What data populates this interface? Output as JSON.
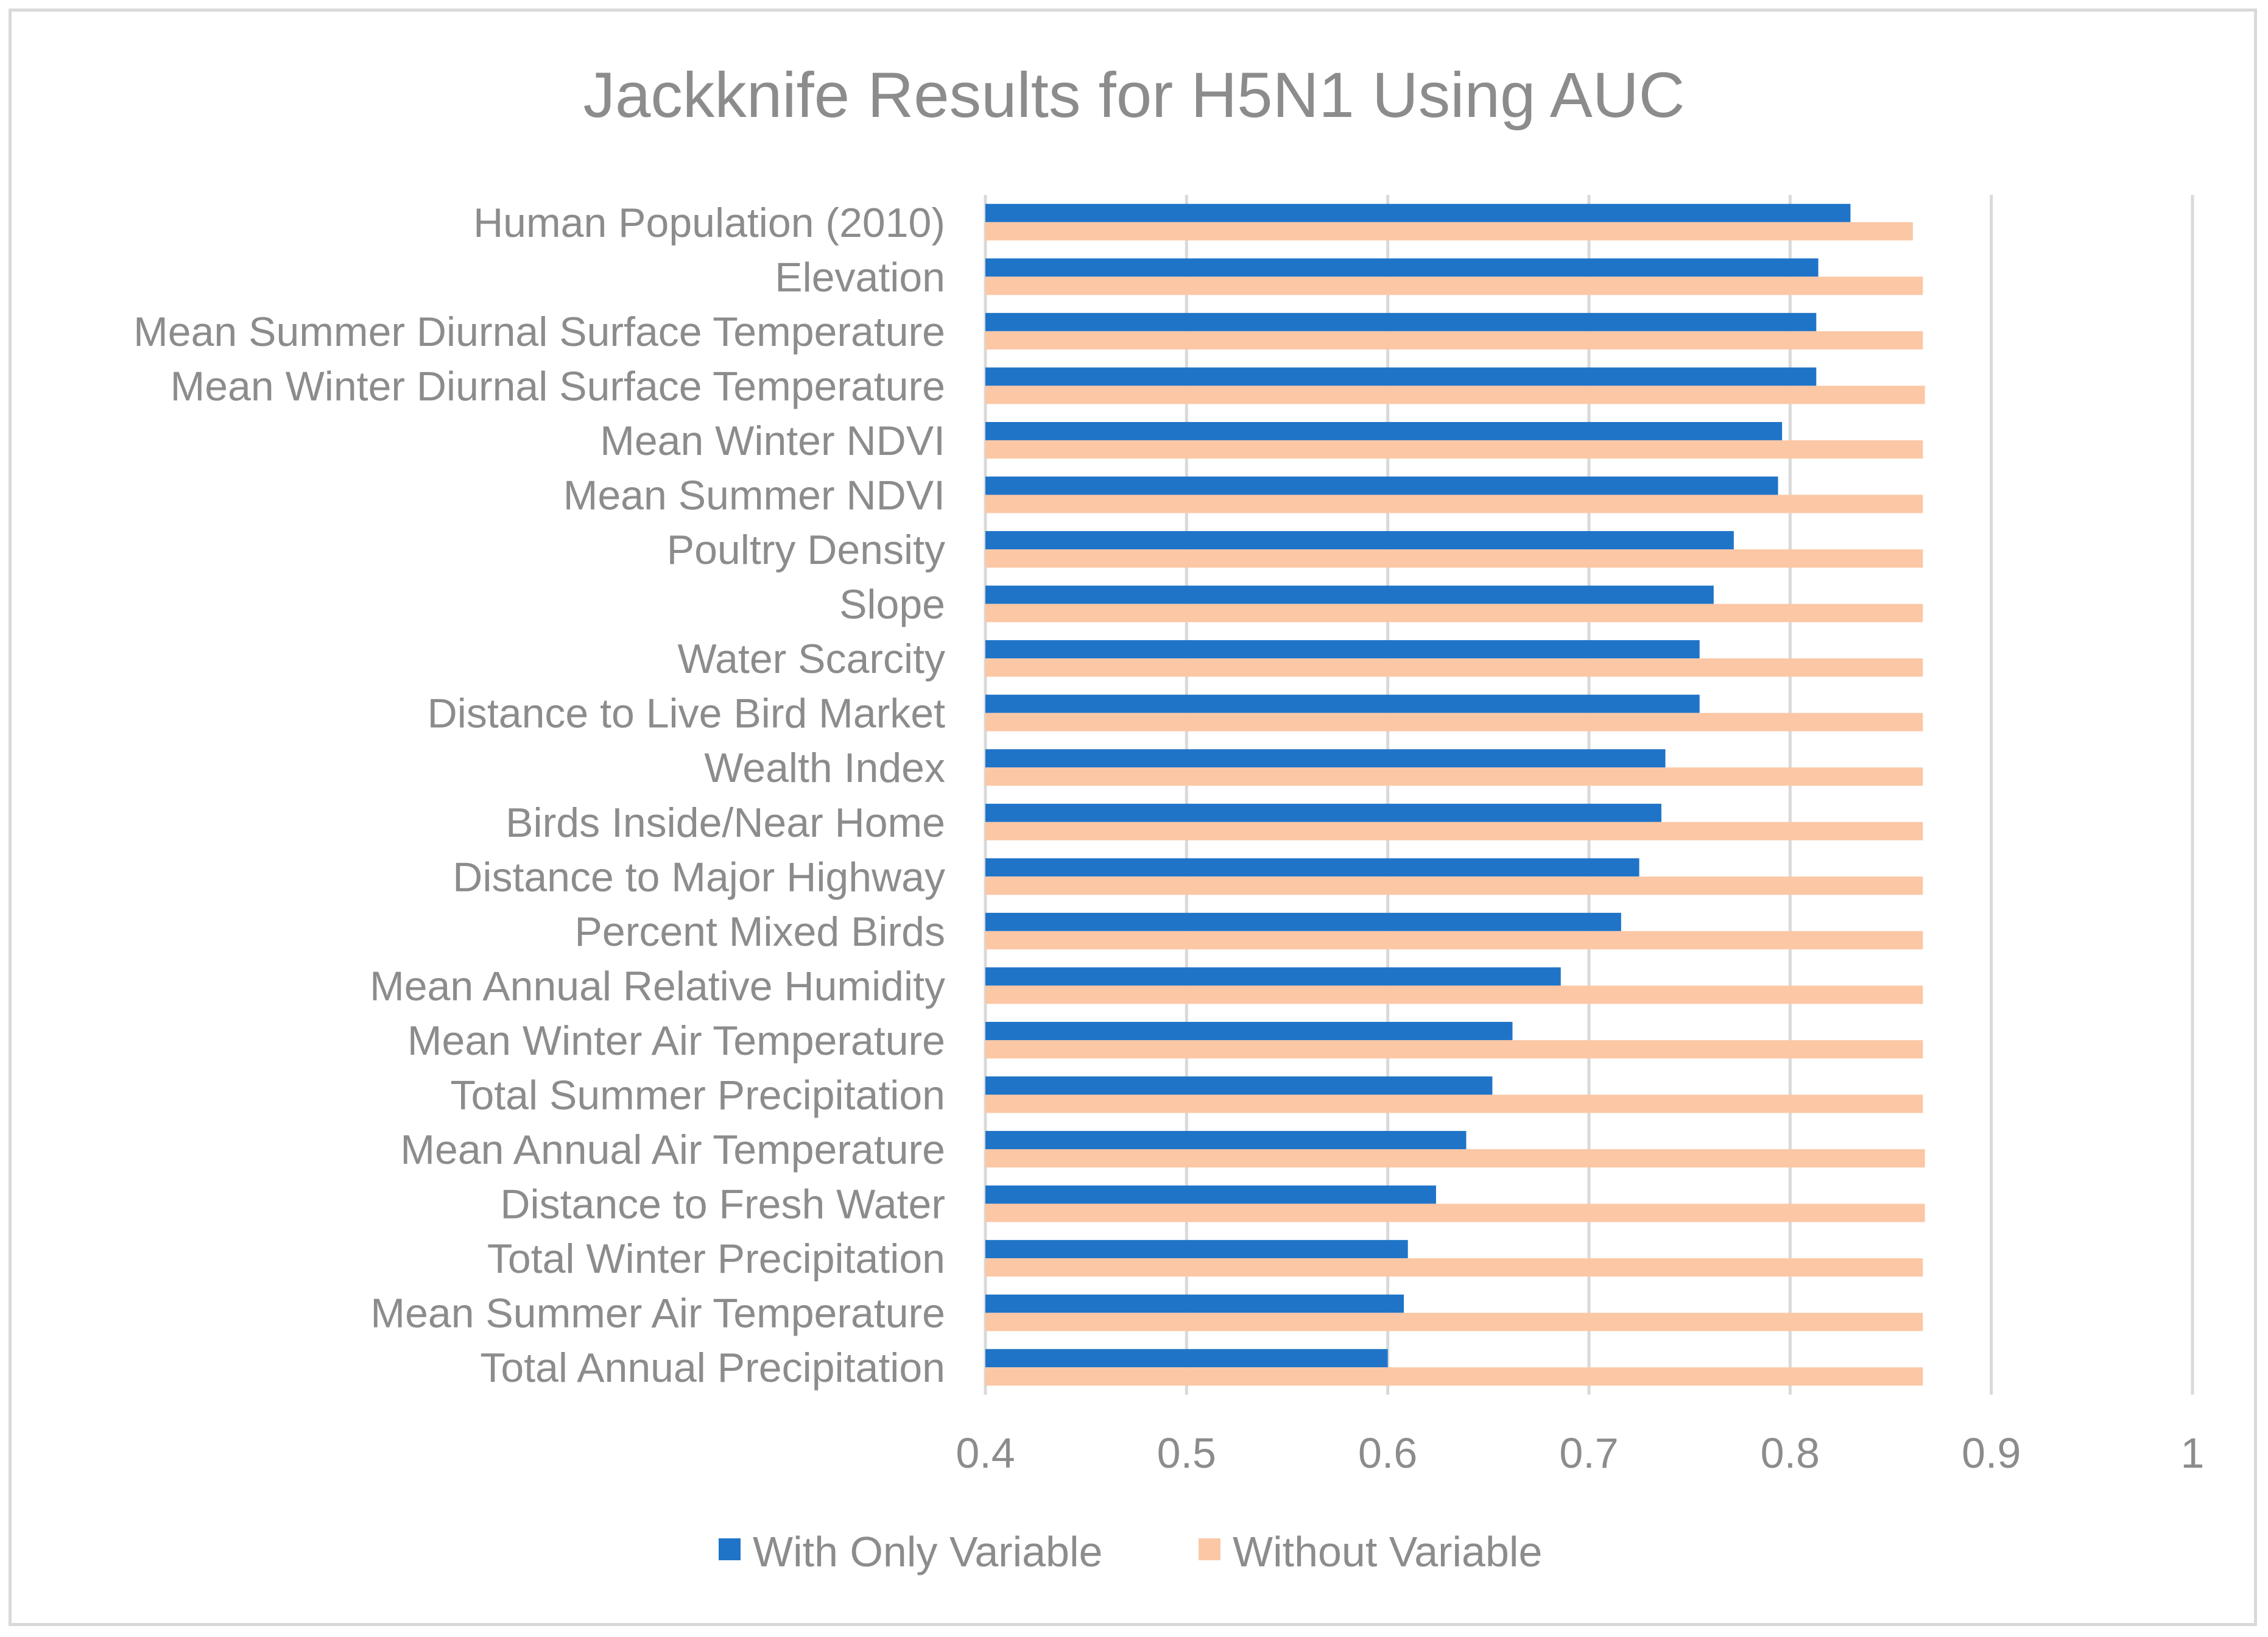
{
  "chart_data": {
    "type": "bar",
    "orientation": "horizontal",
    "title": "Jackknife Results for H5N1 Using AUC",
    "xlabel": "",
    "ylabel": "",
    "xlim": [
      0.4,
      1
    ],
    "x_ticks": [
      "0.4",
      "0.5",
      "0.6",
      "0.7",
      "0.8",
      "0.9",
      "1"
    ],
    "grid": true,
    "legend_position": "bottom",
    "categories": [
      "Human Population (2010)",
      "Elevation",
      "Mean Summer Diurnal Surface Temperature",
      "Mean Winter Diurnal Surface Temperature",
      "Mean Winter NDVI",
      "Mean Summer NDVI",
      "Poultry Density",
      "Slope",
      "Water Scarcity",
      "Distance to Live Bird Market",
      "Wealth Index",
      "Birds Inside/Near Home",
      "Distance to Major Highway",
      "Percent Mixed Birds",
      "Mean Annual Relative Humidity",
      "Mean Winter Air Temperature",
      "Total Summer Precipitation",
      "Mean Annual Air Temperature",
      "Distance to Fresh Water",
      "Total Winter Precipitation",
      "Mean Summer Air Temperature",
      "Total Annual Precipitation"
    ],
    "series": [
      {
        "name": "With Only Variable",
        "color": "#1f74c8",
        "values": [
          0.83,
          0.814,
          0.813,
          0.813,
          0.796,
          0.794,
          0.772,
          0.762,
          0.755,
          0.755,
          0.738,
          0.736,
          0.725,
          0.716,
          0.686,
          0.662,
          0.652,
          0.639,
          0.624,
          0.61,
          0.608,
          0.6
        ]
      },
      {
        "name": "Without Variable",
        "color": "#fcc7a5",
        "values": [
          0.861,
          0.866,
          0.866,
          0.867,
          0.866,
          0.866,
          0.866,
          0.866,
          0.866,
          0.866,
          0.866,
          0.866,
          0.866,
          0.866,
          0.866,
          0.866,
          0.866,
          0.867,
          0.867,
          0.866,
          0.866,
          0.866
        ]
      }
    ]
  }
}
